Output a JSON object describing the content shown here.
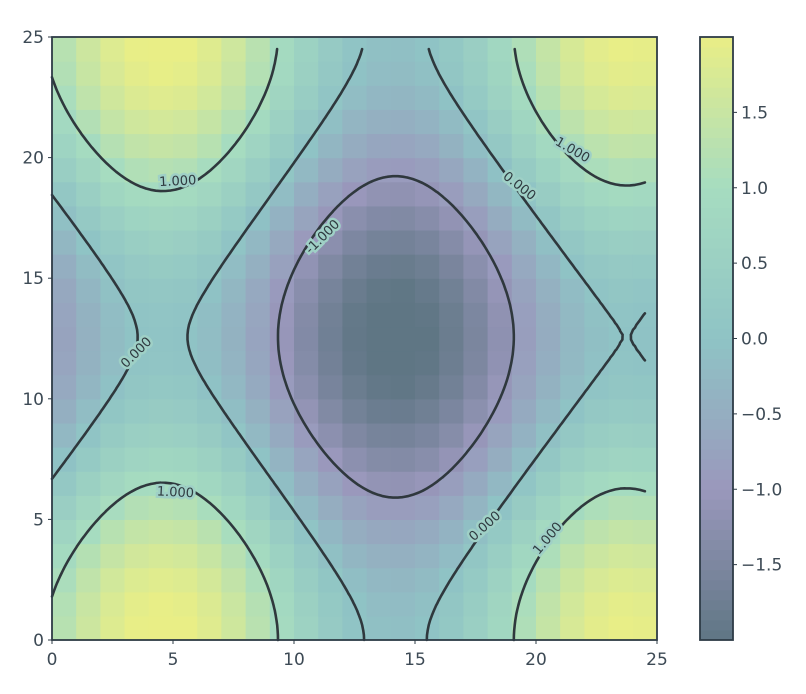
{
  "chart_data": {
    "type": "heatmap",
    "title": "",
    "xlabel": "",
    "ylabel": "",
    "xlim": [
      0,
      25
    ],
    "ylim": [
      0,
      25
    ],
    "x_ticks": [
      "0",
      "5",
      "10",
      "15",
      "20",
      "25"
    ],
    "y_ticks": [
      "0",
      "5",
      "10",
      "15",
      "20",
      "25"
    ],
    "colorbar": {
      "range": [
        -2,
        2
      ],
      "ticks": [
        "−1.5",
        "−1.0",
        "−0.5",
        "0.0",
        "0.5",
        "1.0",
        "1.5"
      ],
      "tick_values": [
        -1.5,
        -1.0,
        -0.5,
        0.0,
        0.5,
        1.0,
        1.5
      ]
    },
    "colormap": [
      "#5f7684",
      "#9a98bc",
      "#8fc3c5",
      "#a6dcc0",
      "#e9ee86"
    ],
    "field": "sin(x/3) + cos(y/4) + 0.1*cos(x/5)",
    "grid": false,
    "contour_levels": [
      {
        "level": -1.0,
        "label": "-1.000",
        "style": "dashed"
      },
      {
        "level": 0.0,
        "label": "0.000",
        "style": "solid"
      },
      {
        "level": 1.0,
        "label": "1.000",
        "style": "solid"
      }
    ],
    "contour_labels": [
      {
        "text": "1.000",
        "x": 5.2,
        "y": 19.0,
        "angle": -3
      },
      {
        "text": "1.000",
        "x": 21.5,
        "y": 20.3,
        "angle": 30
      },
      {
        "text": "0.000",
        "x": 19.3,
        "y": 18.8,
        "angle": 38
      },
      {
        "text": "-1.000",
        "x": 11.2,
        "y": 16.7,
        "angle": -45
      },
      {
        "text": "0.000",
        "x": 3.5,
        "y": 11.9,
        "angle": -45
      },
      {
        "text": "1.000",
        "x": 5.1,
        "y": 6.1,
        "angle": 3
      },
      {
        "text": "0.000",
        "x": 17.9,
        "y": 4.7,
        "angle": -42
      },
      {
        "text": "1.000",
        "x": 20.5,
        "y": 4.2,
        "angle": -50
      }
    ]
  }
}
